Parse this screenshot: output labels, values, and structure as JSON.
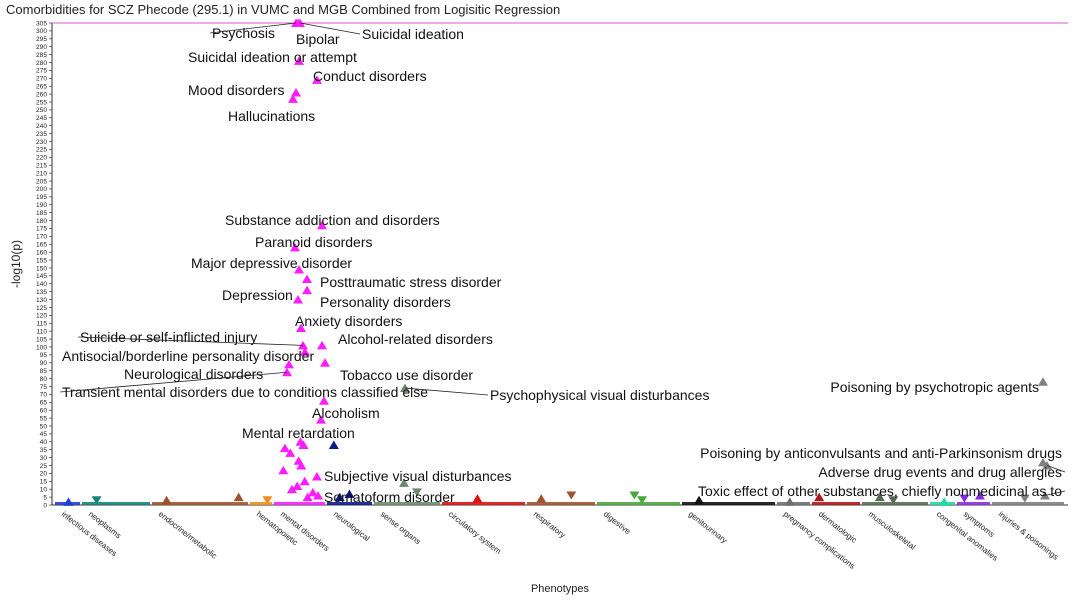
{
  "chart_data": {
    "type": "scatter",
    "subtype": "phewas-manhattan",
    "title": "Comorbidities for SCZ Phecode (295.1) in VUMC and MGB Combined from Logisitic Regression",
    "xlabel": "Phenotypes",
    "ylabel": "-log10(p)",
    "ylim": [
      0,
      305
    ],
    "y_ticks": [
      0,
      5,
      10,
      15,
      20,
      25,
      30,
      35,
      40,
      45,
      50,
      55,
      60,
      65,
      70,
      75,
      80,
      85,
      90,
      95,
      100,
      105,
      110,
      115,
      120,
      125,
      130,
      135,
      140,
      145,
      150,
      155,
      160,
      165,
      170,
      175,
      180,
      185,
      190,
      195,
      200,
      205,
      210,
      215,
      220,
      225,
      230,
      235,
      240,
      245,
      250,
      255,
      260,
      265,
      270,
      275,
      280,
      285,
      290,
      295,
      300,
      305
    ],
    "significance_line": 305,
    "grid": false,
    "legend": "none",
    "categories": [
      {
        "name": "infectious diseases",
        "color": "#1f3fd6"
      },
      {
        "name": "neoplasms",
        "color": "#11857a"
      },
      {
        "name": "endocrine/metabolic",
        "color": "#a0522d"
      },
      {
        "name": "hematopoietic",
        "color": "#f08c1a"
      },
      {
        "name": "mental disorders",
        "color": "#ff1dff"
      },
      {
        "name": "neurological",
        "color": "#0b1a8a"
      },
      {
        "name": "sense organs",
        "color": "#6b8b6b"
      },
      {
        "name": "circulatory system",
        "color": "#e01010"
      },
      {
        "name": "respiratory",
        "color": "#a0522d"
      },
      {
        "name": "digestive",
        "color": "#4aa83a"
      },
      {
        "name": "genitourinary",
        "color": "#111111"
      },
      {
        "name": "pregnancy complications",
        "color": "#6e6e6e"
      },
      {
        "name": "dermatologic",
        "color": "#b31414"
      },
      {
        "name": "musculoskeletal",
        "color": "#556b55"
      },
      {
        "name": "congenital anomalies",
        "color": "#20d8a0"
      },
      {
        "name": "symptoms",
        "color": "#8a2be2"
      },
      {
        "name": "injuries & poisonings",
        "color": "#808080"
      }
    ],
    "labeled_points": [
      {
        "label": "Psychosis",
        "category": "mental disorders",
        "y": 305
      },
      {
        "label": "Bipolar",
        "category": "mental disorders",
        "y": 305
      },
      {
        "label": "Suicidal ideation",
        "category": "mental disorders",
        "y": 305
      },
      {
        "label": "Suicidal ideation or attempt",
        "category": "mental disorders",
        "y": 281
      },
      {
        "label": "Conduct disorders",
        "category": "mental disorders",
        "y": 269
      },
      {
        "label": "Mood disorders",
        "category": "mental disorders",
        "y": 261
      },
      {
        "label": "Hallucinations",
        "category": "mental disorders",
        "y": 257
      },
      {
        "label": "Substance addiction and disorders",
        "category": "mental disorders",
        "y": 177
      },
      {
        "label": "Paranoid disorders",
        "category": "mental disorders",
        "y": 163
      },
      {
        "label": "Major depressive disorder",
        "category": "mental disorders",
        "y": 149
      },
      {
        "label": "Posttraumatic stress disorder",
        "category": "mental disorders",
        "y": 143
      },
      {
        "label": "Depression",
        "category": "mental disorders",
        "y": 130
      },
      {
        "label": "Personality disorders",
        "category": "mental disorders",
        "y": 136
      },
      {
        "label": "Anxiety disorders",
        "category": "mental disorders",
        "y": 112
      },
      {
        "label": "Suicide or self-inflicted injury",
        "category": "mental disorders",
        "y": 101
      },
      {
        "label": "Alcohol-related disorders",
        "category": "mental disorders",
        "y": 101
      },
      {
        "label": "Antisocial/borderline personality disorder",
        "category": "mental disorders",
        "y": 97
      },
      {
        "label": "Tobacco use disorder",
        "category": "mental disorders",
        "y": 90
      },
      {
        "label": "Neurological disorders",
        "category": "mental disorders",
        "y": 89
      },
      {
        "label": "Transient mental disorders due to conditions classified else",
        "category": "mental disorders",
        "y": 84
      },
      {
        "label": "Psychophysical visual disturbances",
        "category": "sense organs",
        "y": 74
      },
      {
        "label": "Alcoholism",
        "category": "mental disorders",
        "y": 66
      },
      {
        "label": "Mental retardation",
        "category": "mental disorders",
        "y": 54
      },
      {
        "label": "Subjective visual disturbances",
        "category": "sense organs",
        "y": 14
      },
      {
        "label": "Somatoform disorder",
        "category": "mental disorders",
        "y": 6
      },
      {
        "label": "Poisoning by psychotropic agents",
        "category": "injuries & poisonings",
        "y": 78
      },
      {
        "label": "Poisoning by anticonvulsants and anti-Parkinsonism drugs",
        "category": "injuries & poisonings",
        "y": 27
      },
      {
        "label": "Adverse drug events and drug allergies",
        "category": "injuries & poisonings",
        "y": 25
      },
      {
        "label": "Toxic effect of other substances, chiefly nonmedicinal as to",
        "category": "injuries & poisonings",
        "y": 6
      }
    ],
    "unlabeled_points": [
      {
        "category": "mental disorders",
        "y": 40
      },
      {
        "category": "mental disorders",
        "y": 38
      },
      {
        "category": "mental disorders",
        "y": 36
      },
      {
        "category": "mental disorders",
        "y": 33
      },
      {
        "category": "mental disorders",
        "y": 28
      },
      {
        "category": "mental disorders",
        "y": 25
      },
      {
        "category": "mental disorders",
        "y": 22
      },
      {
        "category": "mental disorders",
        "y": 18
      },
      {
        "category": "mental disorders",
        "y": 15
      },
      {
        "category": "mental disorders",
        "y": 12
      },
      {
        "category": "mental disorders",
        "y": 10
      },
      {
        "category": "mental disorders",
        "y": 8
      },
      {
        "category": "mental disorders",
        "y": 5
      },
      {
        "category": "neurological",
        "y": 38
      },
      {
        "category": "neurological",
        "y": 7
      },
      {
        "category": "neurological",
        "y": 5
      },
      {
        "category": "sense organs",
        "y": 8
      },
      {
        "category": "infectious diseases",
        "y": 2
      },
      {
        "category": "neoplasms",
        "y": 3
      },
      {
        "category": "endocrine/metabolic",
        "y": 5
      },
      {
        "category": "endocrine/metabolic",
        "y": 3
      },
      {
        "category": "hematopoietic",
        "y": 3
      },
      {
        "category": "circulatory system",
        "y": 4
      },
      {
        "category": "respiratory",
        "y": 6
      },
      {
        "category": "respiratory",
        "y": 4
      },
      {
        "category": "digestive",
        "y": 6
      },
      {
        "category": "digestive",
        "y": 3
      },
      {
        "category": "genitourinary",
        "y": 3
      },
      {
        "category": "pregnancy complications",
        "y": 2
      },
      {
        "category": "dermatologic",
        "y": 5
      },
      {
        "category": "musculoskeletal",
        "y": 5
      },
      {
        "category": "musculoskeletal",
        "y": 3
      },
      {
        "category": "congenital anomalies",
        "y": 2
      },
      {
        "category": "symptoms",
        "y": 6
      },
      {
        "category": "symptoms",
        "y": 4
      },
      {
        "category": "injuries & poisonings",
        "y": 4
      }
    ]
  }
}
